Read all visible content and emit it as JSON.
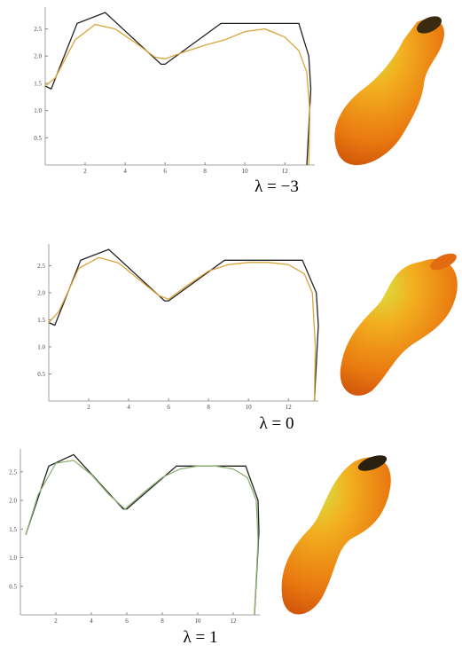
{
  "chart_data": [
    {
      "type": "line",
      "annotation": "λ = −3",
      "xlim": [
        0,
        13.5
      ],
      "ylim": [
        0,
        2.9
      ],
      "xticks": [
        2,
        4,
        6,
        8,
        10,
        12
      ],
      "yticks": [
        0.5,
        {
          "value": 1,
          "label": "1.0"
        },
        1.5,
        {
          "value": 2,
          "label": "2.0"
        },
        2.5
      ],
      "series": [
        {
          "color": "#222222",
          "x": [
            0,
            0.3,
            1.6,
            3.0,
            5.8,
            6.0,
            8.8,
            12.7,
            13.2,
            13.3,
            13.1
          ],
          "values": [
            1.45,
            1.4,
            2.6,
            2.8,
            1.85,
            1.85,
            2.6,
            2.6,
            2.0,
            1.4,
            0
          ]
        },
        {
          "color": "#d9a53c",
          "x": [
            0,
            0.5,
            1.5,
            2.5,
            3.5,
            4.5,
            5.5,
            6,
            7,
            8,
            9,
            10,
            11,
            12,
            12.7,
            13.1,
            13.25,
            13.2
          ],
          "values": [
            1.45,
            1.6,
            2.3,
            2.58,
            2.5,
            2.25,
            1.98,
            1.95,
            2.08,
            2.2,
            2.3,
            2.45,
            2.5,
            2.35,
            2.1,
            1.7,
            1.0,
            0
          ]
        }
      ]
    },
    {
      "type": "line",
      "annotation": "λ = 0",
      "xlim": [
        0,
        13.5
      ],
      "ylim": [
        0,
        2.9
      ],
      "xticks": [
        2,
        4,
        6,
        8,
        10,
        12
      ],
      "yticks": [
        0.5,
        {
          "value": 1,
          "label": "1.0"
        },
        1.5,
        {
          "value": 2,
          "label": "2.0"
        },
        2.5
      ],
      "series": [
        {
          "color": "#222222",
          "x": [
            0,
            0.3,
            1.6,
            3.0,
            5.8,
            6.0,
            8.8,
            12.7,
            13.4,
            13.5,
            13.3
          ],
          "values": [
            1.45,
            1.4,
            2.6,
            2.8,
            1.85,
            1.85,
            2.6,
            2.6,
            2.0,
            1.4,
            0
          ]
        },
        {
          "color": "#d9a53c",
          "x": [
            0,
            0.5,
            1.5,
            2.5,
            3.5,
            4.5,
            5.5,
            6,
            7,
            8,
            9,
            10,
            11,
            12,
            12.8,
            13.2,
            13.35,
            13.3
          ],
          "values": [
            1.45,
            1.65,
            2.45,
            2.65,
            2.55,
            2.25,
            1.95,
            1.88,
            2.15,
            2.4,
            2.52,
            2.56,
            2.56,
            2.52,
            2.35,
            2.0,
            1.0,
            0
          ]
        }
      ]
    },
    {
      "type": "line",
      "annotation": "λ = 1",
      "xlim": [
        0,
        13.5
      ],
      "ylim": [
        0,
        2.9
      ],
      "xticks": [
        2,
        4,
        6,
        8,
        10,
        12
      ],
      "yticks": [
        0.5,
        {
          "value": 1,
          "label": "1.0"
        },
        1.5,
        {
          "value": 2,
          "label": "2.0"
        },
        2.5
      ],
      "series": [
        {
          "color": "#222222",
          "x": [
            0.3,
            1.6,
            3.0,
            5.8,
            6.0,
            8.8,
            12.7,
            13.4,
            13.45,
            13.2
          ],
          "values": [
            1.4,
            2.6,
            2.8,
            1.85,
            1.85,
            2.6,
            2.6,
            2.0,
            1.45,
            0
          ]
        },
        {
          "color": "#8fb070",
          "x": [
            0.3,
            1,
            2,
            3,
            4,
            5,
            5.9,
            7,
            8,
            9,
            10,
            11,
            12,
            12.8,
            13.3,
            13.4,
            13.2
          ],
          "values": [
            1.4,
            2.1,
            2.65,
            2.7,
            2.45,
            2.1,
            1.85,
            2.15,
            2.4,
            2.55,
            2.6,
            2.6,
            2.55,
            2.4,
            2.0,
            1.3,
            0
          ]
        }
      ]
    }
  ]
}
